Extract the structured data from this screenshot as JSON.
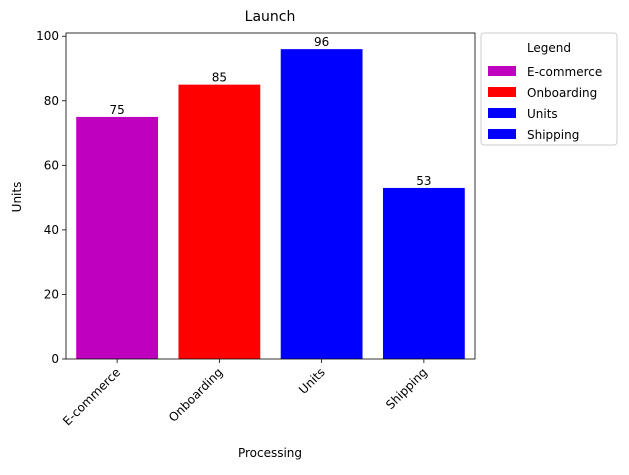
{
  "chart_data": {
    "type": "bar",
    "title": "Launch",
    "xlabel": "Processing",
    "ylabel": "Units",
    "categories": [
      "E-commerce",
      "Onboarding",
      "Units",
      "Shipping"
    ],
    "values": [
      75,
      85,
      96,
      53
    ],
    "colors": [
      "#bf00bf",
      "#ff0000",
      "#0000ff",
      "#0000ff"
    ],
    "ylim": [
      0,
      101
    ],
    "yticks": [
      0,
      20,
      40,
      60,
      80,
      100
    ],
    "grid": false,
    "legend": {
      "title": "Legend",
      "placement": "outside-upper-right",
      "entries": [
        {
          "label": "E-commerce",
          "color": "#bf00bf"
        },
        {
          "label": "Onboarding",
          "color": "#ff0000"
        },
        {
          "label": "Units",
          "color": "#0000ff"
        },
        {
          "label": "Shipping",
          "color": "#0000ff"
        }
      ]
    }
  }
}
